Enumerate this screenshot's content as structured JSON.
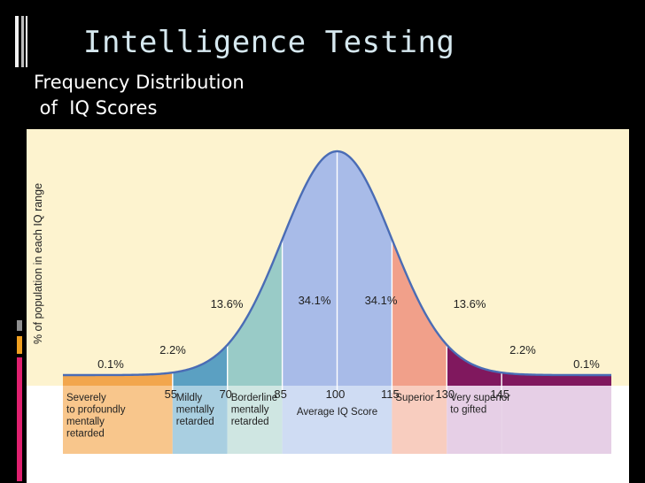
{
  "slide": {
    "title": "Intelligence Testing",
    "subtitle_line1": "Frequency Distribution",
    "subtitle_line2": " of  IQ Scores"
  },
  "colors": {
    "background": "#000000",
    "title": "#d6e8ef",
    "chart_background": "#fdf3cf",
    "bar_pink": "#e0206f",
    "bar_yellow": "#f0a020",
    "bar_gray": "#8f8f8f"
  },
  "chart_data": {
    "type": "area",
    "title": "",
    "xlabel": "",
    "ylabel": "% of population in each IQ range",
    "x_ticks": [
      55,
      70,
      85,
      100,
      115,
      130,
      145
    ],
    "xlim": [
      25,
      175
    ],
    "segments": [
      {
        "from": 25,
        "to": 55,
        "percent": "0.1%",
        "label_lines": [
          "Severely",
          "to profoundly",
          "mentally",
          "retarded"
        ],
        "fill": "#f2a64d",
        "label_bg": "#f8c68c"
      },
      {
        "from": 55,
        "to": 70,
        "percent": "2.2%",
        "label_lines": [
          "Mildly",
          "mentally",
          "retarded"
        ],
        "fill": "#5ba0c2",
        "label_bg": "#a9cfe1"
      },
      {
        "from": 70,
        "to": 85,
        "percent": "13.6%",
        "label_lines": [
          "Borderline",
          "mentally",
          "retarded"
        ],
        "fill": "#99cbc7",
        "label_bg": "#cfe6e2"
      },
      {
        "from": 85,
        "to": 100,
        "percent": "34.1%",
        "label_lines": [],
        "fill": "#a8bbe8",
        "label_bg": "#cfdcf3"
      },
      {
        "from": 100,
        "to": 115,
        "percent": "34.1%",
        "label_lines": [],
        "fill": "#a8bbe8",
        "label_bg": "#cfdcf3"
      },
      {
        "from": 115,
        "to": 130,
        "percent": "13.6%",
        "label_lines": [
          "Superior"
        ],
        "fill": "#f1a08a",
        "label_bg": "#f8cdbf"
      },
      {
        "from": 130,
        "to": 145,
        "percent": "2.2%",
        "label_lines": [
          "Very superior",
          "to gifted"
        ],
        "fill": "#80185e",
        "label_bg": "#e6cfe6"
      },
      {
        "from": 145,
        "to": 175,
        "percent": "0.1%",
        "label_lines": [],
        "fill": "#80185e",
        "label_bg": "#e6cfe6"
      }
    ],
    "center_label": "Average IQ Score",
    "curve_color": "#4a6cb5",
    "grid": false
  }
}
